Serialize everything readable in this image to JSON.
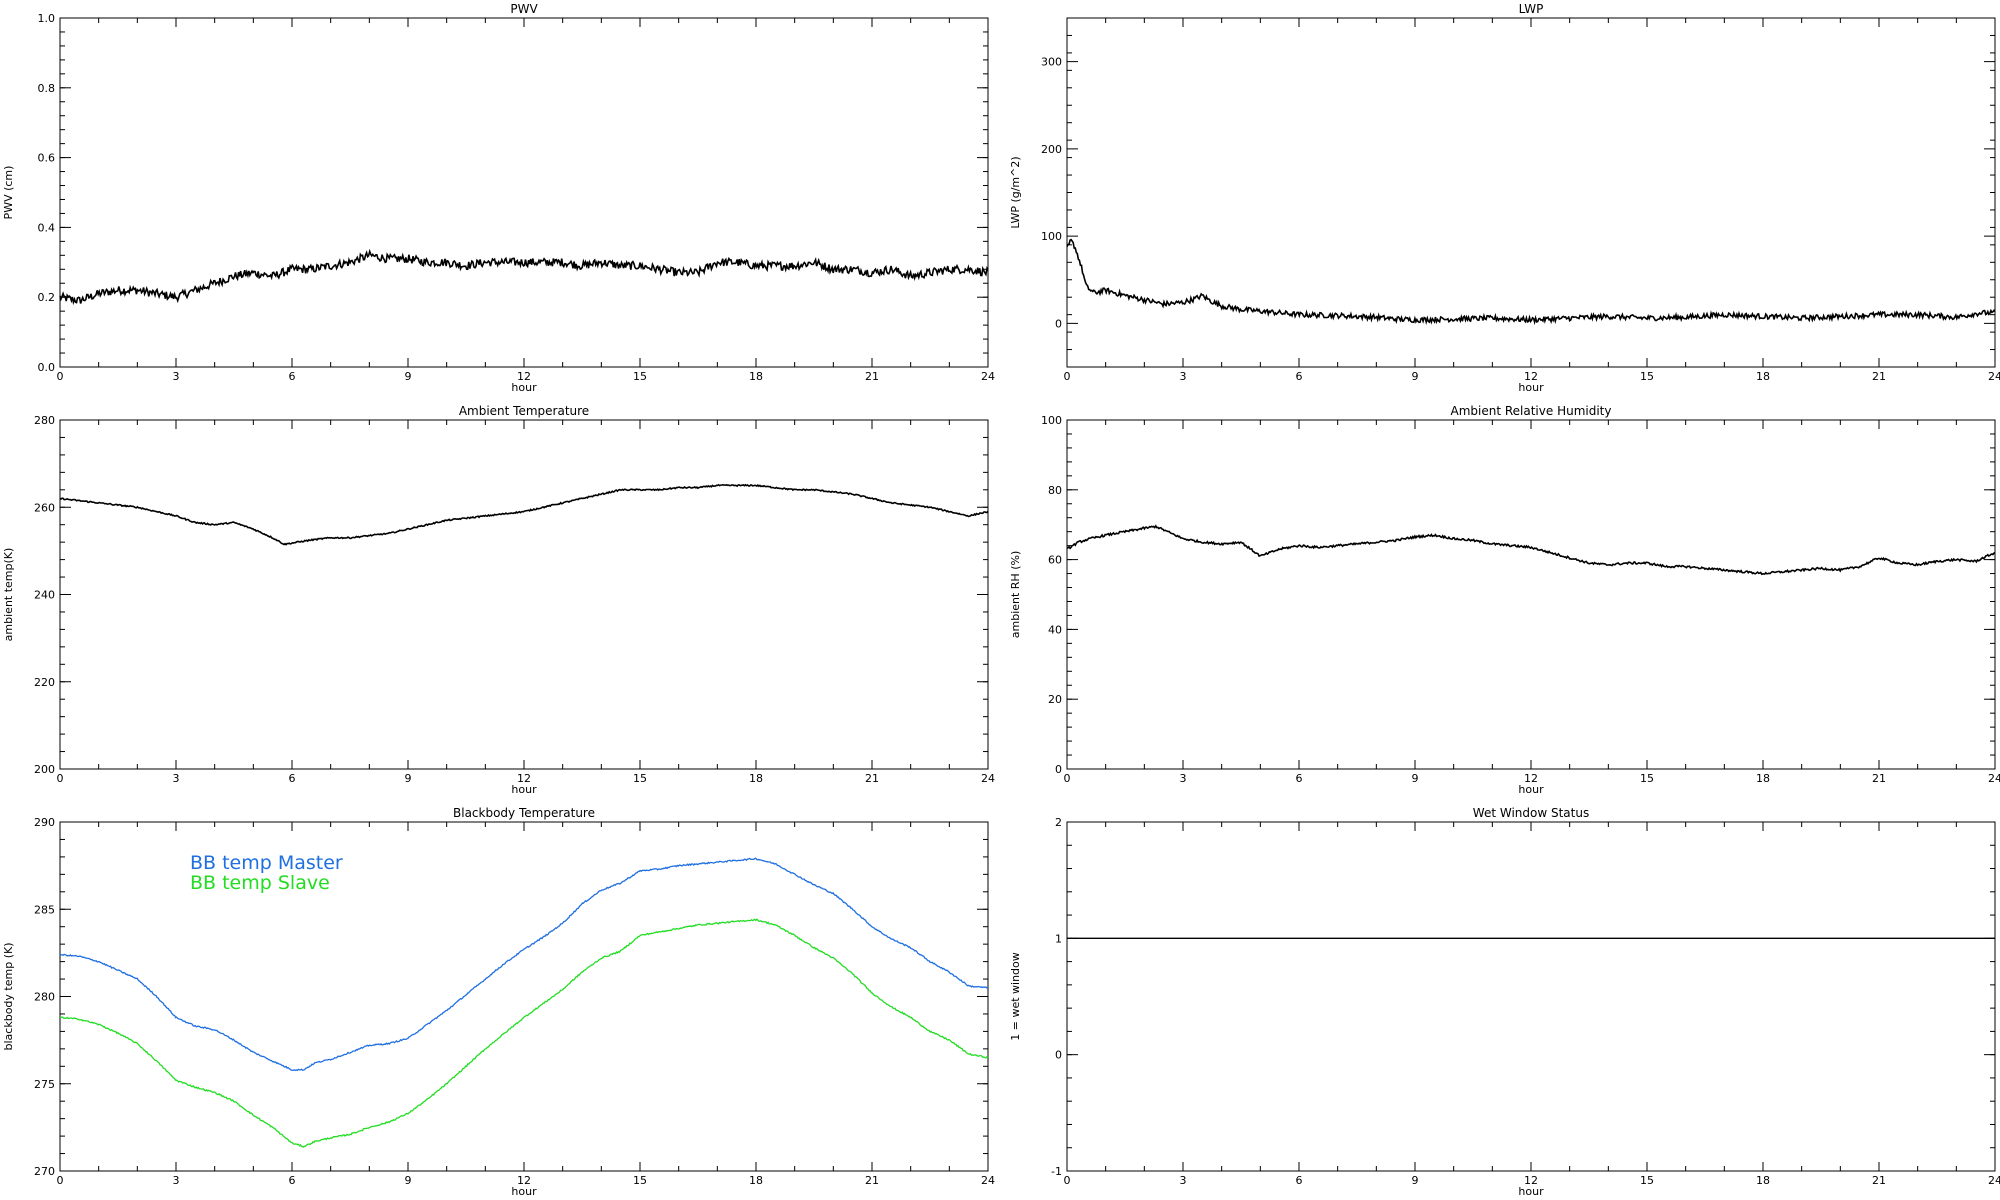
{
  "chart_data": [
    {
      "id": "pwv",
      "type": "line",
      "title": "PWV",
      "xlabel": "hour",
      "ylabel": "PWV (cm)",
      "xlim": [
        0,
        24
      ],
      "ylim": [
        0.0,
        1.0
      ],
      "xticks": [
        0,
        3,
        6,
        9,
        12,
        15,
        18,
        21,
        24
      ],
      "yticks": [
        0.0,
        0.2,
        0.4,
        0.6,
        0.8,
        1.0
      ],
      "ytick_labels": [
        "0.0",
        "0.2",
        "0.4",
        "0.6",
        "0.8",
        "1.0"
      ],
      "noise": 0.012,
      "series": [
        {
          "color": "#000000",
          "x": [
            0,
            0.5,
            1,
            1.5,
            2,
            2.5,
            3,
            3.5,
            4,
            4.5,
            5,
            5.5,
            6,
            6.5,
            7,
            7.5,
            8,
            8.5,
            9,
            9.5,
            10,
            10.5,
            11,
            11.5,
            12,
            12.5,
            13,
            13.5,
            14,
            14.5,
            15,
            15.5,
            16,
            16.5,
            17,
            17.5,
            18,
            18.5,
            19,
            19.5,
            20,
            20.5,
            21,
            21.5,
            22,
            22.5,
            23,
            23.5,
            24
          ],
          "values": [
            0.2,
            0.19,
            0.21,
            0.22,
            0.22,
            0.21,
            0.2,
            0.22,
            0.24,
            0.26,
            0.27,
            0.26,
            0.28,
            0.28,
            0.29,
            0.3,
            0.32,
            0.31,
            0.31,
            0.3,
            0.3,
            0.29,
            0.3,
            0.3,
            0.3,
            0.3,
            0.3,
            0.29,
            0.3,
            0.29,
            0.29,
            0.28,
            0.27,
            0.27,
            0.3,
            0.3,
            0.29,
            0.29,
            0.29,
            0.3,
            0.28,
            0.28,
            0.27,
            0.28,
            0.26,
            0.27,
            0.28,
            0.28,
            0.27
          ]
        }
      ]
    },
    {
      "id": "lwp",
      "type": "line",
      "title": "LWP",
      "xlabel": "hour",
      "ylabel": "LWP (g/m^2)",
      "xlim": [
        0,
        24
      ],
      "ylim": [
        -50,
        350
      ],
      "xticks": [
        0,
        3,
        6,
        9,
        12,
        15,
        18,
        21,
        24
      ],
      "yticks": [
        0,
        100,
        200,
        300
      ],
      "ytick_labels": [
        "0",
        "100",
        "200",
        "300"
      ],
      "noise": 3,
      "series": [
        {
          "color": "#000000",
          "x": [
            0,
            0.1,
            0.2,
            0.3,
            0.4,
            0.5,
            0.7,
            1,
            1.5,
            2,
            2.5,
            3,
            3.3,
            3.5,
            3.7,
            4,
            4.5,
            5,
            6,
            7,
            8,
            8.5,
            9,
            10,
            11,
            12,
            13,
            14,
            15,
            16,
            17,
            18,
            19,
            20,
            21,
            22,
            23,
            23.6,
            24
          ],
          "values": [
            85,
            95,
            88,
            75,
            60,
            42,
            35,
            38,
            32,
            27,
            22,
            24,
            28,
            32,
            26,
            20,
            16,
            14,
            10,
            9,
            7,
            5,
            4,
            5,
            6,
            4,
            6,
            8,
            6,
            7,
            10,
            8,
            6,
            8,
            10,
            10,
            7,
            12,
            12
          ]
        }
      ]
    },
    {
      "id": "ambient-temperature",
      "type": "line",
      "title": "Ambient Temperature",
      "xlabel": "hour",
      "ylabel": "ambient temp(K)",
      "xlim": [
        0,
        24
      ],
      "ylim": [
        200,
        280
      ],
      "xticks": [
        0,
        3,
        6,
        9,
        12,
        15,
        18,
        21,
        24
      ],
      "yticks": [
        200,
        220,
        240,
        260,
        280
      ],
      "ytick_labels": [
        "200",
        "220",
        "240",
        "260",
        "280"
      ],
      "noise": 0.15,
      "series": [
        {
          "color": "#000000",
          "x": [
            0,
            0.5,
            1,
            1.5,
            2,
            2.5,
            3,
            3.5,
            4,
            4.5,
            5,
            5.5,
            5.8,
            6,
            6.5,
            7,
            7.5,
            8,
            8.5,
            9,
            9.5,
            10,
            10.5,
            11,
            11.5,
            12,
            12.5,
            13,
            13.5,
            14,
            14.5,
            15,
            15.5,
            16,
            16.5,
            17,
            17.5,
            18,
            18.5,
            19,
            19.5,
            20,
            20.5,
            21,
            21.5,
            22,
            22.5,
            23,
            23.5,
            24
          ],
          "values": [
            262,
            261.5,
            261,
            260.5,
            260,
            259,
            258,
            256.5,
            256,
            256.5,
            255,
            253,
            251.5,
            251.8,
            252.5,
            253,
            253,
            253.5,
            254,
            255,
            256,
            257,
            257.5,
            258,
            258.5,
            259,
            260,
            261,
            262,
            263,
            264,
            264,
            264,
            264.5,
            264.5,
            265,
            265,
            265,
            264.5,
            264,
            264,
            263.5,
            263,
            262,
            261,
            260.5,
            260,
            259,
            258,
            259
          ]
        }
      ]
    },
    {
      "id": "ambient-relative-humidity",
      "type": "line",
      "title": "Ambient Relative Humidity",
      "xlabel": "hour",
      "ylabel": "ambient RH (%)",
      "xlim": [
        0,
        24
      ],
      "ylim": [
        0,
        100
      ],
      "xticks": [
        0,
        3,
        6,
        9,
        12,
        15,
        18,
        21,
        24
      ],
      "yticks": [
        0,
        20,
        40,
        60,
        80,
        100
      ],
      "ytick_labels": [
        "0",
        "20",
        "40",
        "60",
        "80",
        "100"
      ],
      "noise": 0.3,
      "series": [
        {
          "color": "#000000",
          "x": [
            0,
            0.3,
            0.6,
            1,
            1.5,
            2,
            2.3,
            2.6,
            3,
            3.5,
            4,
            4.5,
            5,
            5.5,
            6,
            6.5,
            7,
            7.5,
            8,
            8.5,
            9,
            9.5,
            10,
            10.5,
            11,
            11.5,
            12,
            12.5,
            13,
            13.5,
            14,
            14.5,
            15,
            15.5,
            16,
            16.5,
            17,
            17.5,
            18,
            18.5,
            19,
            19.5,
            20,
            20.5,
            21,
            21.5,
            22,
            22.5,
            23,
            23.5,
            24
          ],
          "values": [
            63,
            65,
            66,
            67,
            68,
            69,
            69.5,
            68,
            66,
            65,
            64.5,
            65,
            61,
            63,
            64,
            63.5,
            64,
            64.5,
            65,
            65.5,
            66.5,
            67,
            66,
            65.5,
            64.5,
            64,
            63.5,
            62,
            60.5,
            59,
            58.5,
            59,
            59,
            58,
            58,
            57.5,
            57,
            56.5,
            56,
            56.5,
            57,
            57.5,
            57,
            58,
            60.5,
            59,
            58.5,
            59.5,
            60,
            59.5,
            62
          ]
        }
      ]
    },
    {
      "id": "blackbody-temperature",
      "type": "line",
      "title": "Blackbody Temperature",
      "xlabel": "hour",
      "ylabel": "blackbody temp (K)",
      "xlim": [
        0,
        24
      ],
      "ylim": [
        270,
        290
      ],
      "xticks": [
        0,
        3,
        6,
        9,
        12,
        15,
        18,
        21,
        24
      ],
      "yticks": [
        270,
        275,
        280,
        285,
        290
      ],
      "ytick_labels": [
        "270",
        "275",
        "280",
        "285",
        "290"
      ],
      "noise": 0.04,
      "legend": "upper-left",
      "series": [
        {
          "name": "BB temp Master",
          "color": "#1f6fe0",
          "x": [
            0,
            0.5,
            1,
            1.5,
            2,
            2.5,
            3,
            3.5,
            4,
            4.5,
            5,
            5.5,
            6,
            6.3,
            6.6,
            7,
            7.5,
            8,
            8.5,
            9,
            9.5,
            10,
            10.5,
            11,
            11.5,
            12,
            12.5,
            13,
            13.5,
            14,
            14.5,
            15,
            15.5,
            16,
            16.5,
            17,
            17.5,
            18,
            18.5,
            19,
            19.5,
            20,
            20.5,
            21,
            21.5,
            22,
            22.5,
            23,
            23.5,
            24
          ],
          "values": [
            282.4,
            282.3,
            282.0,
            281.5,
            281.0,
            280.0,
            278.8,
            278.3,
            278.1,
            277.5,
            276.8,
            276.3,
            275.8,
            275.8,
            276.2,
            276.4,
            276.8,
            277.2,
            277.3,
            277.6,
            278.4,
            279.2,
            280.1,
            281.0,
            281.9,
            282.7,
            283.4,
            284.2,
            285.3,
            286.1,
            286.5,
            287.2,
            287.3,
            287.5,
            287.6,
            287.7,
            287.8,
            287.9,
            287.6,
            287.0,
            286.4,
            285.9,
            285.0,
            284.0,
            283.3,
            282.8,
            282.0,
            281.4,
            280.6,
            280.5
          ]
        },
        {
          "name": "BB temp Slave",
          "color": "#22dd22",
          "x": [
            0,
            0.5,
            1,
            1.5,
            2,
            2.5,
            3,
            3.5,
            4,
            4.5,
            5,
            5.5,
            6,
            6.3,
            6.6,
            7,
            7.5,
            8,
            8.5,
            9,
            9.5,
            10,
            10.5,
            11,
            11.5,
            12,
            12.5,
            13,
            13.5,
            14,
            14.5,
            15,
            15.5,
            16,
            16.5,
            17,
            17.5,
            18,
            18.5,
            19,
            19.5,
            20,
            20.5,
            21,
            21.5,
            22,
            22.5,
            23,
            23.5,
            24
          ],
          "values": [
            278.8,
            278.7,
            278.4,
            277.9,
            277.3,
            276.3,
            275.2,
            274.8,
            274.5,
            274.0,
            273.2,
            272.5,
            271.6,
            271.4,
            271.7,
            271.9,
            272.1,
            272.5,
            272.8,
            273.3,
            274.1,
            275.0,
            276.0,
            277.0,
            277.9,
            278.8,
            279.6,
            280.4,
            281.4,
            282.2,
            282.6,
            283.5,
            283.7,
            283.9,
            284.1,
            284.2,
            284.3,
            284.4,
            284.1,
            283.5,
            282.8,
            282.2,
            281.3,
            280.2,
            279.4,
            278.8,
            278.0,
            277.5,
            276.7,
            276.5
          ]
        }
      ]
    },
    {
      "id": "wet-window-status",
      "type": "line",
      "title": "Wet Window Status",
      "xlabel": "hour",
      "ylabel": "1 = wet window",
      "xlim": [
        0,
        24
      ],
      "ylim": [
        -1,
        2
      ],
      "xticks": [
        0,
        3,
        6,
        9,
        12,
        15,
        18,
        21,
        24
      ],
      "yticks": [
        -1,
        0,
        1,
        2
      ],
      "ytick_labels": [
        "-1",
        "0",
        "1",
        "2"
      ],
      "noise": 0,
      "series": [
        {
          "color": "#000000",
          "x": [
            0,
            24
          ],
          "values": [
            1,
            1
          ]
        }
      ]
    }
  ]
}
